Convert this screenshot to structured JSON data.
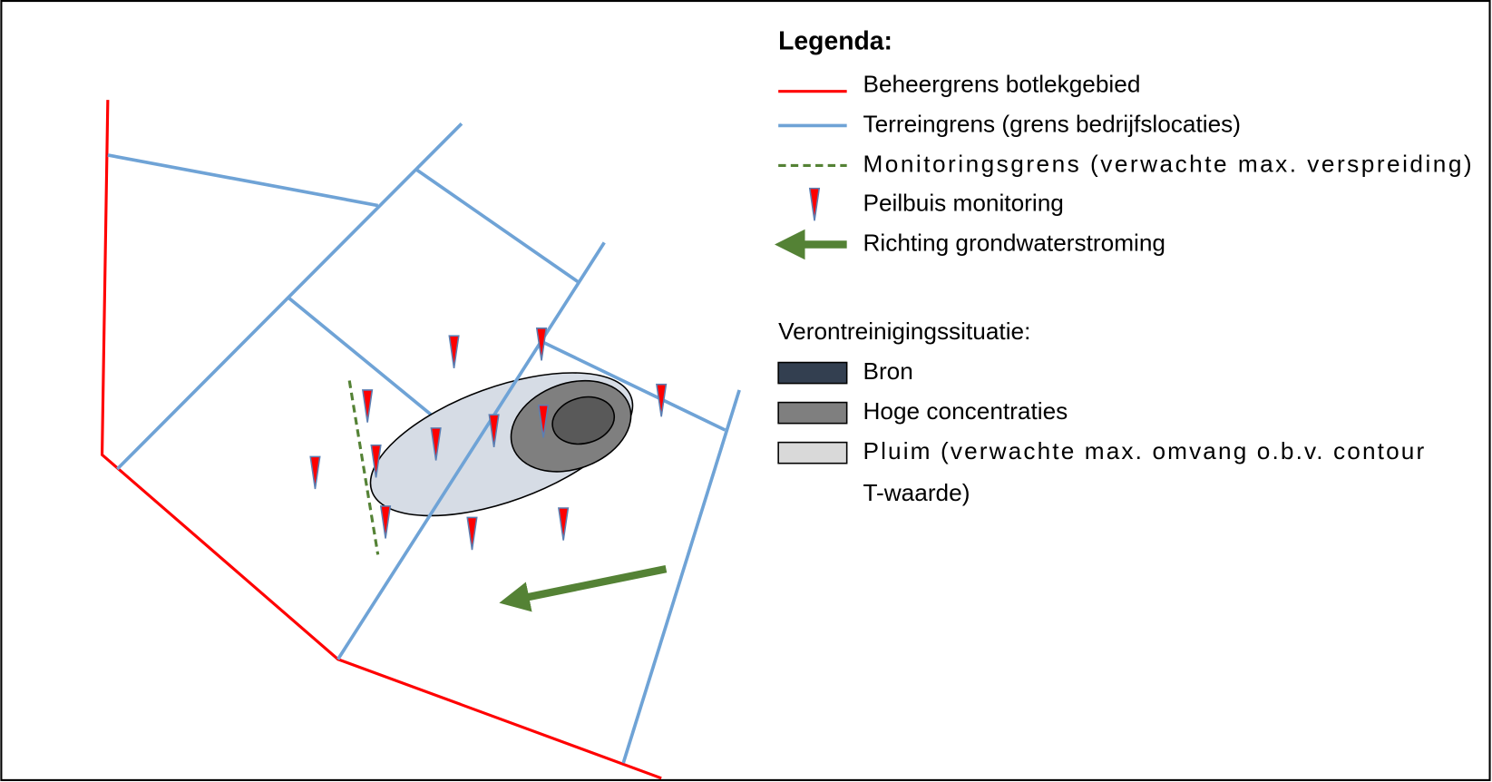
{
  "legend": {
    "title": "Legenda:",
    "items": [
      "Beheergrens botlekgebied",
      "Terreingrens (grens bedrijfslocaties)",
      "Monitoringsgrens (verwachte max. verspreiding)",
      "Peilbuis monitoring",
      "Richting grondwaterstroming"
    ],
    "section_title": "Verontreinigingssituatie:",
    "fills": [
      {
        "label_lines": [
          "Bron"
        ]
      },
      {
        "label_lines": [
          "Hoge concentraties"
        ]
      },
      {
        "label_lines": [
          "Pluim (verwachte max. omvang o.b.v. contour",
          "T-waarde)"
        ]
      }
    ]
  }
}
